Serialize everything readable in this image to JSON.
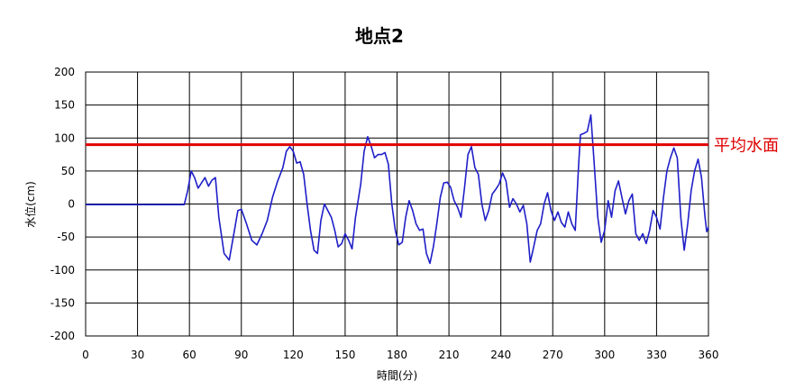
{
  "chart_data": {
    "type": "line",
    "title": "地点2",
    "xlabel": "時間(分)",
    "ylabel": "水位(cm)",
    "xlim": [
      0,
      360
    ],
    "ylim": [
      -200,
      200
    ],
    "x_ticks": [
      0,
      30,
      60,
      90,
      120,
      150,
      180,
      210,
      240,
      270,
      300,
      330,
      360
    ],
    "y_ticks": [
      200,
      150,
      100,
      50,
      0,
      -50,
      -100,
      -150,
      -200
    ],
    "grid": true,
    "series": [
      {
        "color": "#1f1fc8",
        "points": [
          [
            0,
            -1
          ],
          [
            30,
            -1
          ],
          [
            50,
            -1
          ],
          [
            57,
            -1
          ],
          [
            59,
            20
          ],
          [
            61,
            50
          ],
          [
            63,
            40
          ],
          [
            65,
            24
          ],
          [
            67,
            32
          ],
          [
            69,
            40
          ],
          [
            71,
            27
          ],
          [
            73,
            36
          ],
          [
            75,
            40
          ],
          [
            77,
            -20
          ],
          [
            80,
            -75
          ],
          [
            83,
            -85
          ],
          [
            86,
            -40
          ],
          [
            88,
            -10
          ],
          [
            90,
            -8
          ],
          [
            93,
            -30
          ],
          [
            96,
            -55
          ],
          [
            99,
            -62
          ],
          [
            102,
            -45
          ],
          [
            105,
            -25
          ],
          [
            108,
            10
          ],
          [
            111,
            35
          ],
          [
            114,
            55
          ],
          [
            116,
            80
          ],
          [
            118,
            87
          ],
          [
            120,
            80
          ],
          [
            122,
            62
          ],
          [
            124,
            64
          ],
          [
            126,
            45
          ],
          [
            128,
            0
          ],
          [
            130,
            -40
          ],
          [
            132,
            -70
          ],
          [
            134,
            -75
          ],
          [
            136,
            -25
          ],
          [
            138,
            0
          ],
          [
            140,
            -10
          ],
          [
            142,
            -20
          ],
          [
            144,
            -40
          ],
          [
            146,
            -65
          ],
          [
            148,
            -60
          ],
          [
            150,
            -45
          ],
          [
            152,
            -55
          ],
          [
            154,
            -68
          ],
          [
            156,
            -20
          ],
          [
            159,
            30
          ],
          [
            161,
            80
          ],
          [
            163,
            102
          ],
          [
            165,
            88
          ],
          [
            167,
            70
          ],
          [
            169,
            75
          ],
          [
            171,
            75
          ],
          [
            173,
            78
          ],
          [
            175,
            60
          ],
          [
            177,
            0
          ],
          [
            179,
            -40
          ],
          [
            181,
            -62
          ],
          [
            183,
            -58
          ],
          [
            185,
            -20
          ],
          [
            187,
            5
          ],
          [
            189,
            -10
          ],
          [
            191,
            -30
          ],
          [
            193,
            -40
          ],
          [
            195,
            -38
          ],
          [
            197,
            -75
          ],
          [
            199,
            -90
          ],
          [
            201,
            -65
          ],
          [
            203,
            -30
          ],
          [
            205,
            10
          ],
          [
            207,
            32
          ],
          [
            209,
            33
          ],
          [
            211,
            25
          ],
          [
            213,
            5
          ],
          [
            215,
            -5
          ],
          [
            217,
            -20
          ],
          [
            219,
            25
          ],
          [
            221,
            75
          ],
          [
            223,
            87
          ],
          [
            225,
            55
          ],
          [
            227,
            45
          ],
          [
            229,
            0
          ],
          [
            231,
            -25
          ],
          [
            233,
            -10
          ],
          [
            235,
            15
          ],
          [
            237,
            22
          ],
          [
            239,
            30
          ],
          [
            241,
            47
          ],
          [
            243,
            35
          ],
          [
            245,
            -5
          ],
          [
            247,
            8
          ],
          [
            249,
            0
          ],
          [
            251,
            -12
          ],
          [
            253,
            -2
          ],
          [
            255,
            -30
          ],
          [
            257,
            -88
          ],
          [
            259,
            -65
          ],
          [
            261,
            -40
          ],
          [
            263,
            -30
          ],
          [
            265,
            0
          ],
          [
            267,
            17
          ],
          [
            269,
            -10
          ],
          [
            271,
            -25
          ],
          [
            273,
            -12
          ],
          [
            275,
            -28
          ],
          [
            277,
            -35
          ],
          [
            279,
            -12
          ],
          [
            281,
            -30
          ],
          [
            283,
            -40
          ],
          [
            285,
            60
          ],
          [
            286,
            105
          ],
          [
            288,
            107
          ],
          [
            290,
            110
          ],
          [
            292,
            135
          ],
          [
            294,
            60
          ],
          [
            296,
            -20
          ],
          [
            298,
            -58
          ],
          [
            300,
            -40
          ],
          [
            302,
            5
          ],
          [
            304,
            -20
          ],
          [
            306,
            20
          ],
          [
            308,
            35
          ],
          [
            310,
            10
          ],
          [
            312,
            -15
          ],
          [
            314,
            5
          ],
          [
            316,
            15
          ],
          [
            318,
            -45
          ],
          [
            320,
            -55
          ],
          [
            322,
            -45
          ],
          [
            324,
            -60
          ],
          [
            326,
            -40
          ],
          [
            328,
            -10
          ],
          [
            330,
            -20
          ],
          [
            332,
            -38
          ],
          [
            334,
            10
          ],
          [
            336,
            50
          ],
          [
            338,
            70
          ],
          [
            340,
            85
          ],
          [
            342,
            70
          ],
          [
            344,
            -20
          ],
          [
            346,
            -70
          ],
          [
            348,
            -30
          ],
          [
            350,
            20
          ],
          [
            352,
            50
          ],
          [
            354,
            68
          ],
          [
            356,
            40
          ],
          [
            358,
            -20
          ],
          [
            359,
            -42
          ],
          [
            360,
            -35
          ]
        ]
      }
    ],
    "reference_line": {
      "y": 90,
      "label": "平均水面",
      "color": "#e00000"
    }
  }
}
